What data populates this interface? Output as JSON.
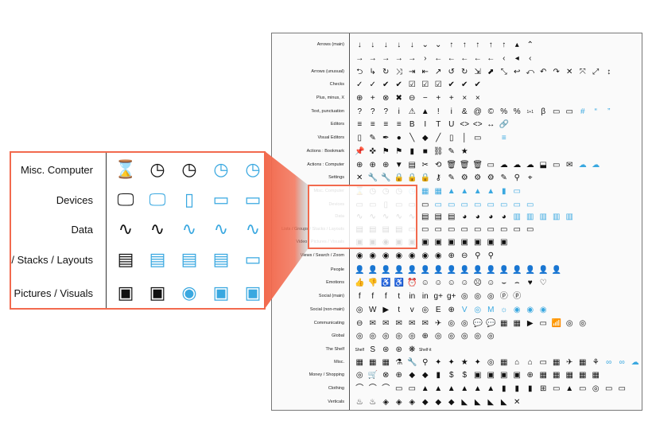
{
  "colors": {
    "accent": "#3aa8e0",
    "highlight": "#f26a4e"
  },
  "sheet": {
    "rows": [
      {
        "label": "Arrows (main)",
        "icons": [
          "↓",
          "↓",
          "↓",
          "↓",
          "↓",
          "⌄",
          "⌄",
          "↑",
          "↑",
          "↑",
          "↑",
          "↑",
          "▴",
          "⌃"
        ],
        "blue_from": 99
      },
      {
        "label": "",
        "icons": [
          "→",
          "→",
          "→",
          "→",
          "→",
          "›",
          "←",
          "←",
          "←",
          "←",
          "←",
          "‹",
          "◂",
          "‹"
        ],
        "blue_from": 99
      },
      {
        "label": "Arrows (unusual)",
        "icons": [
          "⮌",
          "↳",
          "↻",
          "⤨",
          "⇥",
          "⇤",
          "↗",
          "↺",
          "↻",
          "⇲",
          "⬈",
          "⤡",
          "↩",
          "⤺",
          "↶",
          "↷",
          "✕",
          "⤧",
          "⤢",
          "↕"
        ],
        "blue_from": 99
      },
      {
        "label": "Checks",
        "icons": [
          "✓",
          "✓",
          "✔",
          "✔",
          "☑",
          "☑",
          "☑",
          "✔",
          "✔",
          "✔"
        ],
        "blue_from": 99
      },
      {
        "label": "Plus, minus, X",
        "icons": [
          "⊕",
          "+",
          "⊗",
          "✖",
          "⊖",
          "−",
          "+",
          "+",
          "×",
          "×"
        ],
        "blue_from": 99
      },
      {
        "label": "Text, punctuation",
        "icons": [
          "?",
          "?",
          "?",
          "i",
          "⚠",
          "▲",
          "!",
          "i",
          "&",
          "@",
          "©",
          "%",
          "%",
          "1+1",
          "β",
          "▭",
          "▭",
          "#",
          "“",
          "”"
        ],
        "blue_from": 17
      },
      {
        "label": "Editors",
        "icons": [
          "≡",
          "≡",
          "≡",
          "≡",
          "B",
          "I",
          "T",
          "U",
          "<>",
          "<>",
          "↔",
          "🔗"
        ],
        "blue_from": 99
      },
      {
        "label": "Visual Editors",
        "icons": [
          "▯",
          "✎",
          "✒",
          "●",
          "╲",
          "◆",
          "╱",
          "▯",
          "│",
          "▭",
          "",
          "≡"
        ],
        "blue_from": 10
      },
      {
        "label": "Actions : Bookmark",
        "icons": [
          "📌",
          "✜",
          "⚑",
          "⚑",
          "▮",
          "■",
          "⛓",
          "✎",
          "★"
        ],
        "blue_from": 99
      },
      {
        "label": "Actions : Computer",
        "icons": [
          "⊕",
          "⊕",
          "⊕",
          "▼",
          "▤",
          "✂",
          "⟲",
          "🗑",
          "🗑",
          "🗑",
          "▭",
          "☁",
          "☁",
          "☁",
          "⬓",
          "▭",
          "✉",
          "☁",
          "☁"
        ],
        "blue_from": 17
      },
      {
        "label": "Settings",
        "icons": [
          "✕",
          "🔧",
          "🔧",
          "🔒",
          "🔒",
          "🔒",
          "⚷",
          "✎",
          "⚙",
          "⚙",
          "⚙",
          "✎",
          "⚲",
          "⌖"
        ],
        "blue_from": 99
      },
      {
        "label": "Misc. Computer",
        "icons": [
          "⌛",
          "◷",
          "◷",
          "◷",
          "◷",
          "▦",
          "▦",
          "▲",
          "▲",
          "▲",
          "▲",
          "▮",
          "▭"
        ],
        "blue_from": 4
      },
      {
        "label": "Devices",
        "icons": [
          "▭",
          "▭",
          "▯",
          "▭",
          "▭",
          "▭",
          "▭",
          "▭",
          "▭",
          "▭",
          "▭",
          "▭",
          "▭",
          "▭"
        ],
        "blue_from": 6
      },
      {
        "label": "Data",
        "icons": [
          "∿",
          "∿",
          "∿",
          "∿",
          "∿",
          "▤",
          "▤",
          "▤",
          "◕",
          "◕",
          "◕",
          "◕",
          "▥",
          "▥",
          "▥",
          "▥",
          "▥"
        ],
        "blue_from": 12
      },
      {
        "label": "Lists / Groups / Stacks / Layouts",
        "icons": [
          "▤",
          "▤",
          "▤",
          "▤",
          "▭",
          "▭",
          "▭",
          "▭",
          "▭",
          "▭",
          "▭",
          "▭",
          "▭",
          "▭"
        ],
        "blue_from": 99
      },
      {
        "label": "Video / Pictures / Visuals",
        "icons": [
          "▣",
          "▣",
          "◉",
          "▣",
          "▣",
          "▣",
          "▣",
          "▣",
          "▣",
          "▣",
          "▣",
          "▣"
        ],
        "blue_from": 99
      },
      {
        "label": "Views / Search / Zoom",
        "icons": [
          "◉",
          "◉",
          "◉",
          "◉",
          "◉",
          "◉",
          "◉",
          "⊕",
          "⊖",
          "⚲",
          "⚲"
        ],
        "blue_from": 99
      },
      {
        "label": "People",
        "icons": [
          "👤",
          "👤",
          "👤",
          "👤",
          "👤",
          "👤",
          "👤",
          "👤",
          "👤",
          "👤",
          "👤",
          "👤",
          "👤",
          "👤",
          "👤",
          "👤"
        ],
        "blue_from": 14
      },
      {
        "label": "Emotions",
        "icons": [
          "👍",
          "👎",
          "♿",
          "♿",
          "⏰",
          "☺",
          "☺",
          "☺",
          "☺",
          "☹",
          "☺",
          "⌣",
          "⌢",
          "♥",
          "♡"
        ],
        "blue_from": 99
      },
      {
        "label": "Social (main)",
        "icons": [
          "f",
          "f",
          "f",
          "t",
          "in",
          "in",
          "g+",
          "g+",
          "◎",
          "◎",
          "◎",
          "ⓟ",
          "ⓟ"
        ],
        "blue_from": 99
      },
      {
        "label": "Social (non-main)",
        "icons": [
          "◎",
          "W",
          "▶",
          "t",
          "v",
          "◎",
          "E",
          "⊕",
          "V",
          "◎",
          "M",
          "☼",
          "◉",
          "◉",
          "◉"
        ],
        "blue_from": 8
      },
      {
        "label": "Communicating",
        "icons": [
          "⊖",
          "✉",
          "✉",
          "✉",
          "✉",
          "✉",
          "✈",
          "◎",
          "◎",
          "💬",
          "💬",
          "▦",
          "▦",
          "▶",
          "▭",
          "📶",
          "◎",
          "◎"
        ],
        "blue_from": 99
      },
      {
        "label": "Global",
        "icons": [
          "◎",
          "◎",
          "◎",
          "◎",
          "◎",
          "⊕",
          "◎",
          "◎",
          "◎",
          "◎",
          "◎"
        ],
        "blue_from": 99
      },
      {
        "label": "The Shelf",
        "icons": [
          "Shelf",
          "S",
          "⊛",
          "⊛",
          "❋",
          "Shelf·it"
        ],
        "blue_from": 99
      },
      {
        "label": "Misc.",
        "icons": [
          "▦",
          "▦",
          "▦",
          "⚗",
          "🔧",
          "⚲",
          "✦",
          "✦",
          "★",
          "✦",
          "◎",
          "▦",
          "⌂",
          "⌂",
          "▭",
          "▦",
          "✈",
          "▦",
          "⚘",
          "∞",
          "∞",
          "☁"
        ],
        "blue_from": 19
      },
      {
        "label": "Money / Shopping",
        "icons": [
          "◎",
          "🛒",
          "⊗",
          "⊕",
          "◆",
          "◆",
          "▮",
          "$",
          "$",
          "▣",
          "▣",
          "▣",
          "▣",
          "⊕",
          "▦",
          "▦",
          "▦",
          "▦",
          "▦"
        ],
        "blue_from": 99
      },
      {
        "label": "Clothing",
        "icons": [
          "⌒",
          "⌒",
          "⌒",
          "▭",
          "▭",
          "▲",
          "▲",
          "▲",
          "▲",
          "▲",
          "▲",
          "▮",
          "▮",
          "▮",
          "⊞",
          "▭",
          "▲",
          "▭",
          "◎",
          "▭",
          "▭"
        ],
        "blue_from": 99
      },
      {
        "label": "Verticals",
        "icons": [
          "♨",
          "♨",
          "◈",
          "◈",
          "◈",
          "◆",
          "◆",
          "◆",
          "◣",
          "◣",
          "◣",
          "◣",
          "✕"
        ],
        "blue_from": 99
      }
    ]
  },
  "magnified": {
    "rows": [
      {
        "label": "Misc. Computer",
        "icons": [
          "⌛",
          "◷",
          "◷",
          "◷",
          "◷"
        ],
        "blue_from": 3
      },
      {
        "label": "Devices",
        "icons": [
          "🖵",
          "🖵",
          "▯",
          "▭",
          "▭"
        ],
        "blue_from": 1
      },
      {
        "label": "Data",
        "icons": [
          "∿",
          "∿",
          "∿",
          "∿",
          "∿"
        ],
        "blue_from": 2
      },
      {
        "label": "/ Stacks / Layouts",
        "icons": [
          "▤",
          "▤",
          "▤",
          "▤",
          "▭"
        ],
        "blue_from": 1
      },
      {
        "label": "Pictures / Visuals",
        "icons": [
          "▣",
          "▣",
          "◉",
          "▣",
          "▣"
        ],
        "blue_from": 2
      }
    ]
  }
}
